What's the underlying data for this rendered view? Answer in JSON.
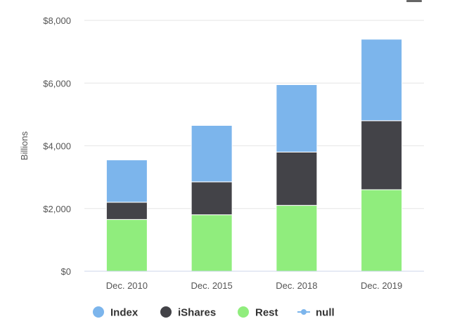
{
  "chart_data": {
    "type": "bar",
    "stacked": true,
    "categories": [
      "Dec. 2010",
      "Dec. 2015",
      "Dec. 2018",
      "Dec. 2019"
    ],
    "series": [
      {
        "name": "Rest",
        "color": "#90ed7d",
        "values": [
          1650,
          1800,
          2100,
          2600
        ]
      },
      {
        "name": "iShares",
        "color": "#434348",
        "values": [
          550,
          1050,
          1700,
          2200
        ]
      },
      {
        "name": "Index",
        "color": "#7cb5ec",
        "values": [
          1350,
          1800,
          2150,
          2600
        ]
      }
    ],
    "title": "",
    "xlabel": "",
    "ylabel": "Billions",
    "ylim": [
      0,
      8000
    ],
    "yticks": [
      "$0",
      "$2,000",
      "$4,000",
      "$6,000",
      "$8,000"
    ],
    "ytick_values": [
      0,
      2000,
      4000,
      6000,
      8000
    ],
    "grid": true,
    "legend": {
      "position": "bottom",
      "items": [
        {
          "label": "Index",
          "color": "#7cb5ec",
          "marker": "circle"
        },
        {
          "label": "iShares",
          "color": "#434348",
          "marker": "circle"
        },
        {
          "label": "Rest",
          "color": "#90ed7d",
          "marker": "circle"
        },
        {
          "label": "null",
          "color": "#7cb5ec",
          "marker": "line"
        }
      ]
    }
  },
  "menu": {
    "icon": "hamburger-menu-icon"
  }
}
